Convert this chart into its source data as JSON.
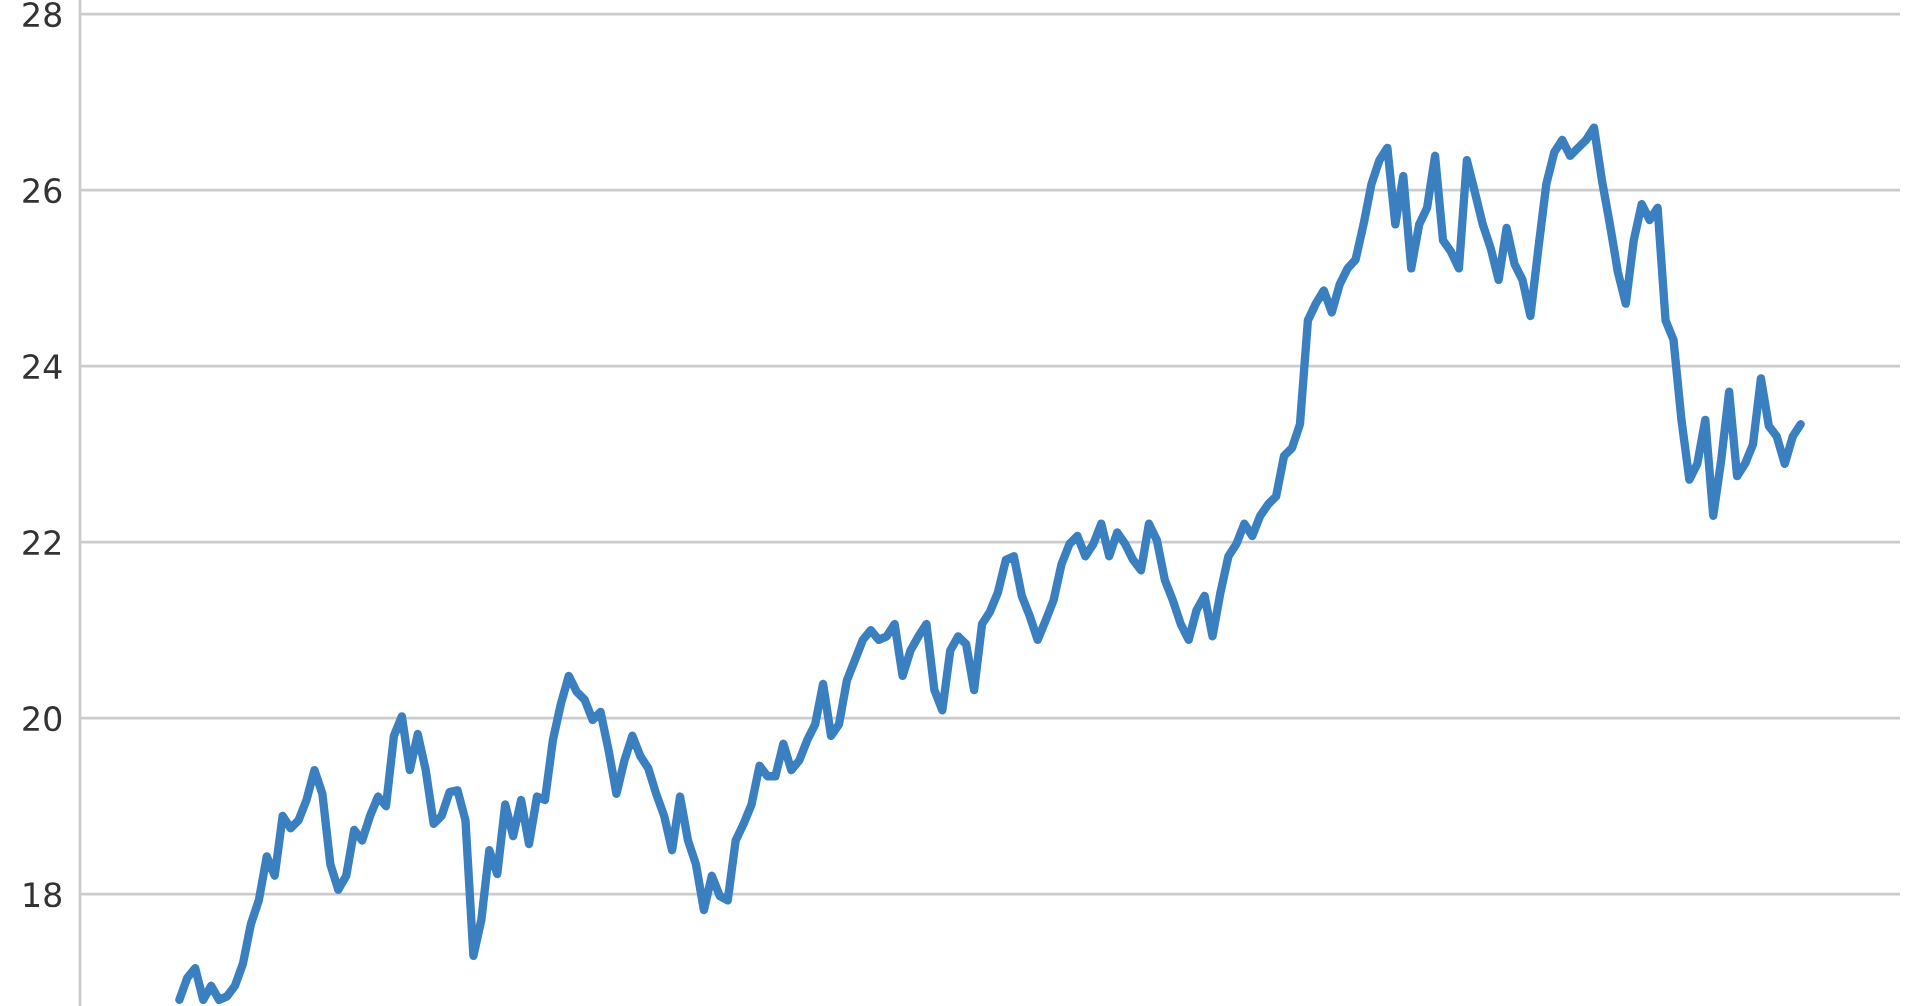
{
  "chart_data": {
    "type": "line",
    "categories": [
      null,
      null,
      null,
      null,
      null,
      null,
      null,
      null,
      null,
      null,
      null,
      null,
      null,
      null,
      null,
      null,
      null,
      null,
      null,
      null,
      null,
      null,
      null,
      null,
      null,
      null,
      null,
      null,
      null,
      null,
      null,
      null,
      null,
      null,
      null,
      null,
      null,
      null,
      null,
      null,
      null,
      null,
      null,
      null,
      null,
      null,
      null,
      null,
      null,
      null,
      null,
      null,
      null,
      null,
      null,
      null,
      null,
      null,
      null,
      null,
      null,
      null,
      null,
      null,
      null,
      null,
      null,
      null,
      null,
      null,
      null,
      null,
      null,
      null,
      null,
      null,
      null,
      null,
      null,
      null,
      null,
      null,
      null,
      null,
      null,
      null,
      null,
      null,
      null,
      null,
      null,
      null,
      null,
      null,
      null,
      null,
      null,
      null,
      null,
      null,
      null,
      null,
      null,
      null,
      null,
      null,
      null,
      null,
      null,
      null,
      null,
      null,
      null,
      null,
      null,
      null,
      null,
      null,
      null,
      null,
      null,
      null,
      null,
      null,
      null,
      null,
      null,
      null,
      null,
      null,
      null,
      null,
      null,
      null,
      null,
      null,
      null,
      null,
      null,
      null,
      null,
      null,
      null,
      null,
      null,
      null,
      null,
      null,
      null,
      null,
      null,
      null,
      null,
      null,
      null,
      null,
      null,
      null,
      null,
      null,
      null,
      null,
      null,
      null,
      null,
      null,
      null,
      null,
      null,
      null,
      null,
      null,
      null,
      null,
      null,
      null,
      null,
      null,
      null,
      null,
      null,
      null,
      null,
      null,
      null,
      null,
      null,
      null,
      null,
      null,
      null,
      null,
      null,
      null,
      null,
      null,
      null,
      null,
      null,
      null,
      null,
      null,
      null,
      null,
      null,
      null,
      null,
      null,
      null,
      null,
      null,
      null,
      null,
      null,
      null,
      null,
      null
    ],
    "series": [
      {
        "color": "#3a7fc0",
        "values": [
          null,
          null,
          null,
          null,
          null,
          null,
          null,
          null,
          null,
          null,
          null,
          null,
          16.8,
          17.05,
          17.16,
          16.8,
          16.96,
          16.8,
          16.84,
          16.96,
          17.21,
          17.66,
          17.93,
          18.43,
          18.21,
          18.89,
          18.75,
          18.84,
          19.07,
          19.41,
          19.14,
          18.34,
          18.05,
          18.21,
          18.73,
          18.61,
          18.89,
          19.11,
          19.0,
          19.8,
          20.02,
          19.41,
          19.82,
          19.41,
          18.8,
          18.89,
          19.16,
          19.18,
          18.84,
          17.3,
          17.71,
          18.5,
          18.23,
          19.02,
          18.66,
          19.07,
          18.57,
          19.11,
          19.07,
          19.75,
          20.16,
          20.48,
          20.3,
          20.21,
          19.98,
          20.07,
          19.64,
          19.14,
          19.52,
          19.8,
          19.57,
          19.43,
          19.14,
          18.89,
          18.5,
          19.11,
          18.61,
          18.34,
          17.82,
          18.21,
          17.98,
          17.93,
          18.61,
          18.8,
          19.02,
          19.46,
          19.34,
          19.34,
          19.71,
          19.41,
          19.52,
          19.75,
          19.93,
          20.39,
          19.8,
          19.93,
          20.43,
          20.66,
          20.89,
          21.0,
          20.89,
          20.93,
          21.07,
          20.48,
          20.77,
          20.93,
          21.07,
          20.32,
          20.09,
          20.77,
          20.93,
          20.84,
          20.32,
          21.07,
          21.21,
          21.43,
          21.8,
          21.84,
          21.39,
          21.16,
          20.89,
          21.11,
          21.34,
          21.75,
          21.98,
          22.07,
          21.84,
          21.98,
          22.21,
          21.84,
          22.11,
          21.98,
          21.8,
          21.68,
          22.21,
          22.02,
          21.57,
          21.34,
          21.07,
          20.89,
          21.23,
          21.39,
          20.93,
          21.43,
          21.84,
          21.98,
          22.21,
          22.07,
          22.3,
          22.43,
          22.52,
          22.98,
          23.07,
          23.34,
          24.52,
          24.71,
          24.86,
          24.61,
          24.93,
          25.11,
          25.21,
          25.61,
          26.07,
          26.34,
          26.48,
          25.61,
          26.16,
          25.11,
          25.61,
          25.8,
          26.39,
          25.43,
          25.3,
          25.11,
          26.34,
          25.98,
          25.61,
          25.34,
          24.98,
          25.57,
          25.16,
          24.98,
          24.57,
          25.34,
          26.07,
          26.43,
          26.57,
          26.39,
          26.48,
          26.57,
          26.71,
          26.11,
          25.61,
          25.07,
          24.71,
          25.43,
          25.84,
          25.66,
          25.8,
          24.52,
          24.3,
          23.39,
          22.71,
          22.89,
          23.39,
          22.3,
          22.93,
          23.71,
          22.75,
          22.89,
          23.11,
          23.86,
          23.32,
          23.2,
          22.89,
          23.2,
          23.34
        ]
      }
    ],
    "ylim": [
      16.73,
      28.16
    ],
    "yticks": [
      18,
      20,
      22,
      24,
      26,
      28
    ],
    "grid": "y",
    "tick_labels": "y",
    "legend": false,
    "marker": "none",
    "line_style": "solid"
  }
}
